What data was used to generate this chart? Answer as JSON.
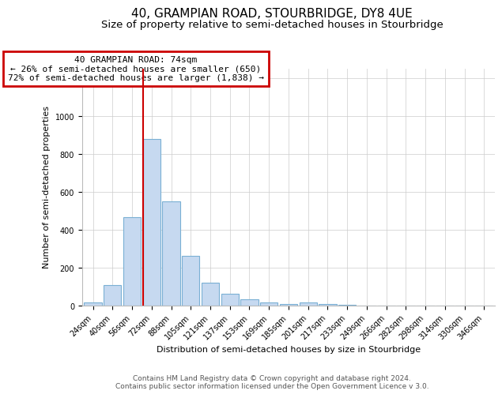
{
  "title": "40, GRAMPIAN ROAD, STOURBRIDGE, DY8 4UE",
  "subtitle": "Size of property relative to semi-detached houses in Stourbridge",
  "xlabel": "Distribution of semi-detached houses by size in Stourbridge",
  "ylabel": "Number of semi-detached properties",
  "bar_labels": [
    "24sqm",
    "40sqm",
    "56sqm",
    "72sqm",
    "88sqm",
    "105sqm",
    "121sqm",
    "137sqm",
    "153sqm",
    "169sqm",
    "185sqm",
    "201sqm",
    "217sqm",
    "233sqm",
    "249sqm",
    "266sqm",
    "282sqm",
    "298sqm",
    "314sqm",
    "330sqm",
    "346sqm"
  ],
  "bar_values": [
    18,
    110,
    465,
    880,
    550,
    262,
    120,
    62,
    35,
    18,
    8,
    15,
    10,
    3,
    2,
    1,
    1,
    0,
    0,
    0,
    0
  ],
  "bar_color": "#c6d9f0",
  "bar_edge_color": "#7ab0d4",
  "annotation_title": "40 GRAMPIAN ROAD: 74sqm",
  "annotation_line1": "← 26% of semi-detached houses are smaller (650)",
  "annotation_line2": "72% of semi-detached houses are larger (1,838) →",
  "annotation_box_color": "#ffffff",
  "annotation_border_color": "#cc0000",
  "ylim": [
    0,
    1250
  ],
  "footer1": "Contains HM Land Registry data © Crown copyright and database right 2024.",
  "footer2": "Contains public sector information licensed under the Open Government Licence v 3.0.",
  "bg_color": "#ffffff",
  "grid_color": "#cccccc",
  "title_fontsize": 11,
  "subtitle_fontsize": 9.5,
  "axis_label_fontsize": 8,
  "tick_fontsize": 7,
  "annotation_fontsize": 8,
  "footer_fontsize": 6.5
}
